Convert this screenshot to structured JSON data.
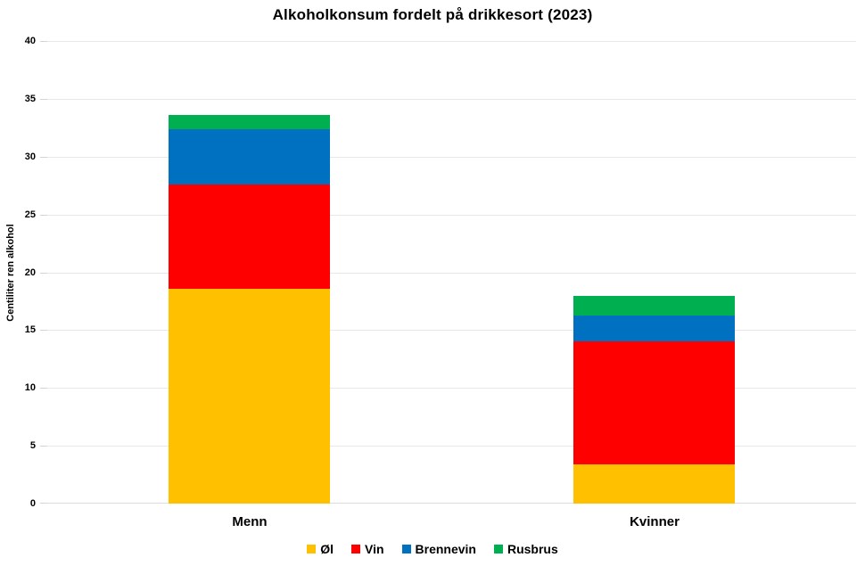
{
  "chart_data": {
    "type": "bar",
    "stacked": true,
    "title": "Alkoholkonsum fordelt på drikkesort (2023)",
    "categories": [
      "Menn",
      "Kvinner"
    ],
    "series": [
      {
        "name": "Øl",
        "color": "#FFC000",
        "values": [
          18.6,
          3.4
        ]
      },
      {
        "name": "Vin",
        "color": "#FF0000",
        "values": [
          9.0,
          10.6
        ]
      },
      {
        "name": "Brennevin",
        "color": "#0070C0",
        "values": [
          4.8,
          2.3
        ]
      },
      {
        "name": "Rusbrus",
        "color": "#00B050",
        "values": [
          1.2,
          1.7
        ]
      }
    ],
    "totals": [
      33.6,
      18.0
    ],
    "xlabel": "",
    "ylabel": "Centiliter ren alkohol",
    "ylim": [
      0,
      40
    ],
    "yticks": [
      0,
      5,
      10,
      15,
      20,
      25,
      30,
      35,
      40
    ],
    "grid": true,
    "legend_position": "bottom"
  },
  "colors": {
    "background": "#FFFFFF",
    "gridline": "#E8E8E8",
    "baseline": "#DCDCDC",
    "tick": "#D4D4D4",
    "text": "#000000"
  }
}
